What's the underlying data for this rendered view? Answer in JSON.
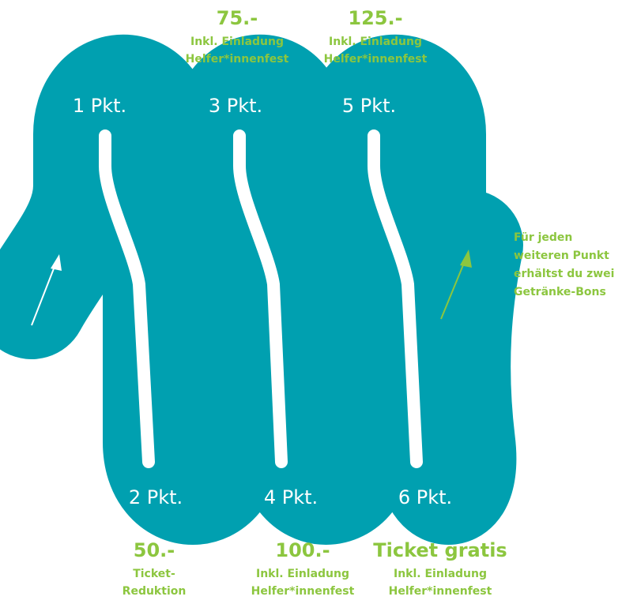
{
  "colors": {
    "track": "#00a0b0",
    "accent": "#8cc63f",
    "arrow_start": "#ffffff",
    "text_on_track": "#ffffff"
  },
  "milestones": [
    {
      "points": "1 Pkt."
    },
    {
      "points": "2 Pkt.",
      "amount": "50.-",
      "sub": [
        "Ticket-",
        "Reduktion"
      ]
    },
    {
      "points": "3 Pkt.",
      "amount": "75.-",
      "sub": [
        "Inkl. Einladung",
        "Helfer*innenfest"
      ]
    },
    {
      "points": "4 Pkt.",
      "amount": "100.-",
      "sub": [
        "Inkl. Einladung",
        "Helfer*innenfest"
      ]
    },
    {
      "points": "5 Pkt.",
      "amount": "125.-",
      "sub": [
        "Inkl. Einladung",
        "Helfer*innenfest"
      ]
    },
    {
      "points": "6 Pkt.",
      "amount": "Ticket gratis",
      "sub": [
        "Inkl. Einladung",
        "Helfer*innenfest"
      ]
    }
  ],
  "note": [
    "Für jeden",
    "weiteren Punkt",
    "erhältst du zwei",
    "Getränke-Bons"
  ],
  "icons": [
    "arrow-up-right-icon",
    "arrow-up-right-icon"
  ]
}
